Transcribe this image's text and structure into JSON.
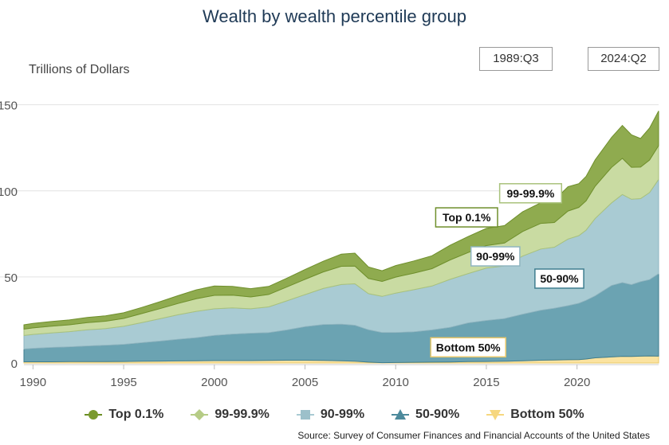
{
  "chart_data": {
    "type": "area",
    "title": "Wealth by wealth percentile group",
    "ylabel": "Trillions of Dollars",
    "xlabel": "",
    "xlim": [
      1989.5,
      2024.5
    ],
    "ylim": [
      0,
      160
    ],
    "yticks": [
      0,
      50,
      100,
      150
    ],
    "xticks": [
      1990,
      1995,
      2000,
      2005,
      2010,
      2015,
      2020
    ],
    "range_start": "1989:Q3",
    "range_end": "2024:Q2",
    "stacked": true,
    "grid": true,
    "legend_position": "bottom",
    "x": [
      1989.5,
      1990,
      1991,
      1992,
      1993,
      1994,
      1995,
      1996,
      1997,
      1998,
      1999,
      2000,
      2001,
      2002,
      2003,
      2004,
      2005,
      2006,
      2007,
      2007.75,
      2008.5,
      2009.25,
      2010,
      2011,
      2012,
      2013,
      2014,
      2015,
      2016,
      2017,
      2018,
      2018.75,
      2019.5,
      2020.1,
      2020.5,
      2021,
      2021.9,
      2022.5,
      2023,
      2023.5,
      2024,
      2024.5
    ],
    "series": [
      {
        "name": "Bottom 50%",
        "color": "#fbe3a0",
        "marker": "triangle-down",
        "values": [
          0.7,
          0.7,
          0.7,
          0.8,
          0.8,
          0.8,
          0.9,
          1.0,
          1.1,
          1.2,
          1.3,
          1.4,
          1.4,
          1.4,
          1.5,
          1.6,
          1.6,
          1.5,
          1.3,
          1.0,
          0.5,
          0.2,
          0.3,
          0.4,
          0.5,
          0.6,
          0.8,
          0.9,
          1.0,
          1.3,
          1.6,
          1.7,
          1.9,
          2.0,
          2.3,
          3.0,
          3.5,
          3.9,
          3.8,
          4.0,
          4.1,
          4.0
        ]
      },
      {
        "name": "50-90%",
        "color": "#6ba3b2",
        "marker": "triangle-up",
        "values": [
          7.4,
          7.8,
          8.3,
          8.6,
          9.1,
          9.5,
          9.9,
          10.8,
          11.6,
          12.6,
          13.4,
          14.6,
          15.4,
          15.9,
          16.1,
          17.6,
          19.5,
          20.8,
          21.2,
          20.9,
          18.8,
          17.5,
          17.4,
          17.7,
          18.7,
          20.1,
          22.5,
          23.8,
          24.8,
          27.0,
          29.0,
          30.1,
          31.4,
          32.7,
          34.1,
          36.0,
          41.5,
          42.8,
          41.7,
          43.2,
          44.3,
          47.9
        ]
      },
      {
        "name": "90-99%",
        "color": "#a9cbd3",
        "marker": "square",
        "values": [
          7.9,
          8.1,
          8.5,
          8.8,
          9.4,
          9.7,
          10.5,
          11.7,
          13.0,
          14.2,
          15.3,
          15.5,
          15.2,
          14.2,
          15.0,
          16.9,
          18.6,
          21.0,
          23.1,
          24.1,
          21.0,
          21.0,
          22.9,
          24.5,
          25.5,
          27.9,
          28.7,
          30.4,
          30.6,
          33.8,
          35.6,
          35.5,
          38.7,
          39.3,
          40.8,
          45.0,
          48.0,
          51.2,
          49.6,
          48.3,
          50.6,
          54.8
        ]
      },
      {
        "name": "99-99.9%",
        "color": "#c9dba2",
        "marker": "diamond",
        "values": [
          3.7,
          3.8,
          3.9,
          4.0,
          4.2,
          4.3,
          4.6,
          5.2,
          5.9,
          6.6,
          7.3,
          7.8,
          7.4,
          6.9,
          7.2,
          8.1,
          8.9,
          9.6,
          10.6,
          10.3,
          8.8,
          8.7,
          9.3,
          9.6,
          10.1,
          11.3,
          12.2,
          13.1,
          13.3,
          14.3,
          14.9,
          14.3,
          16.3,
          16.4,
          17.0,
          18.7,
          20.6,
          21.0,
          18.6,
          18.3,
          18.9,
          19.6
        ]
      },
      {
        "name": "Top 0.1%",
        "color": "#8fab4f",
        "marker": "circle",
        "values": [
          2.5,
          2.6,
          2.7,
          2.8,
          3.0,
          3.1,
          3.3,
          3.6,
          4.0,
          4.5,
          5.2,
          5.4,
          5.1,
          4.8,
          4.7,
          5.1,
          5.7,
          6.2,
          7.0,
          7.5,
          6.7,
          6.2,
          6.7,
          7.1,
          7.5,
          8.5,
          9.3,
          10.0,
          10.1,
          11.4,
          12.0,
          12.9,
          14.1,
          13.8,
          14.2,
          15.3,
          17.4,
          19.1,
          18.9,
          16.6,
          18.6,
          20.1
        ]
      }
    ],
    "labels": {
      "top_0_1": "Top 0.1%",
      "p99_99_9": "99-99.9%",
      "p90_99": "90-99%",
      "p50_90": "50-90%",
      "bottom_50": "Bottom 50%"
    },
    "source": "Source: Survey of Consumer Finances and Financial Accounts of the United States"
  }
}
